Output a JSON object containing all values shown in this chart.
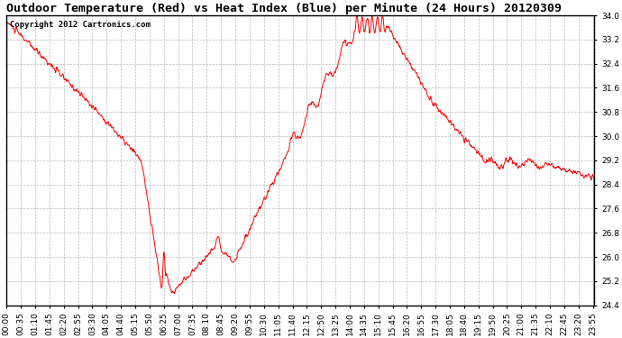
{
  "title": "Outdoor Temperature (Red) vs Heat Index (Blue) per Minute (24 Hours) 20120309",
  "copyright_text": "Copyright 2012 Cartronics.com",
  "ylim": [
    24.4,
    34.0
  ],
  "yticks": [
    24.4,
    25.2,
    26.0,
    26.8,
    27.6,
    28.4,
    29.2,
    30.0,
    30.8,
    31.6,
    32.4,
    33.2,
    34.0
  ],
  "line_color": "#ff0000",
  "background_color": "#ffffff",
  "grid_color": "#aaaaaa",
  "title_fontsize": 9.5,
  "tick_fontsize": 6.5,
  "copyright_fontsize": 6.5,
  "figwidth": 6.9,
  "figheight": 3.75,
  "dpi": 100
}
